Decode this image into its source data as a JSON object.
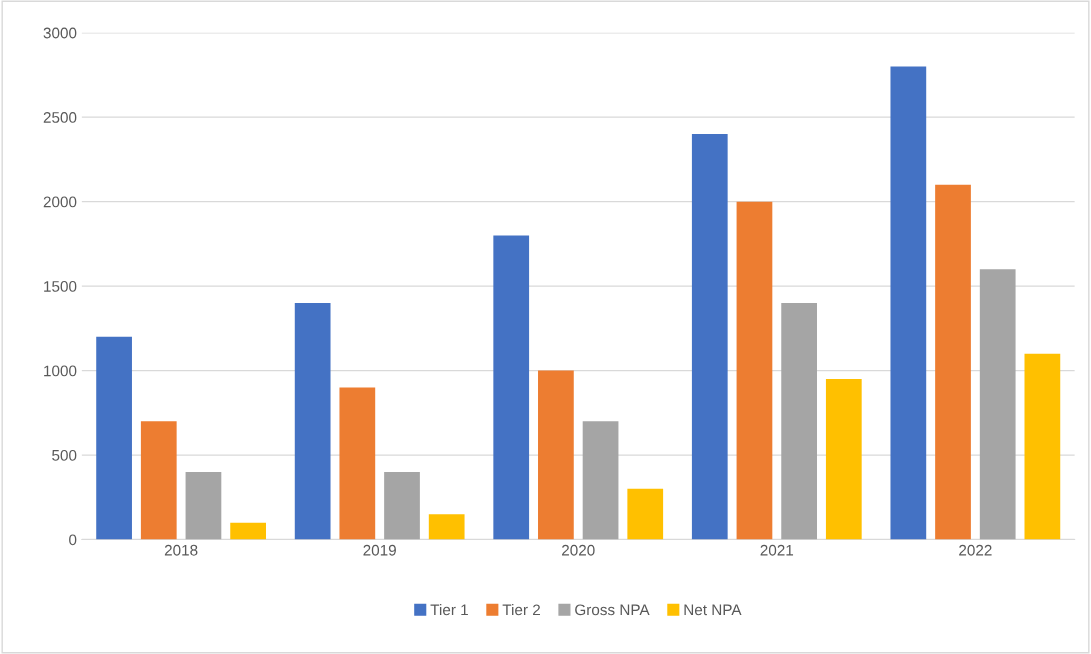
{
  "chart_data": {
    "type": "bar",
    "categories": [
      "2018",
      "2019",
      "2020",
      "2021",
      "2022"
    ],
    "series": [
      {
        "name": "Tier 1",
        "color": "#4472c4",
        "values": [
          1200,
          1400,
          1800,
          2400,
          2800
        ]
      },
      {
        "name": "Tier 2",
        "color": "#ed7d31",
        "values": [
          700,
          900,
          1000,
          2000,
          2100
        ]
      },
      {
        "name": "Gross NPA",
        "color": "#a5a5a5",
        "values": [
          400,
          400,
          700,
          1400,
          1600
        ]
      },
      {
        "name": "Net NPA",
        "color": "#ffc000",
        "values": [
          100,
          150,
          300,
          950,
          1100
        ]
      }
    ],
    "ylim": [
      0,
      3000
    ],
    "yticks": [
      0,
      500,
      1000,
      1500,
      2000,
      2500,
      3000
    ],
    "grid": "y",
    "legend": "bottom"
  }
}
